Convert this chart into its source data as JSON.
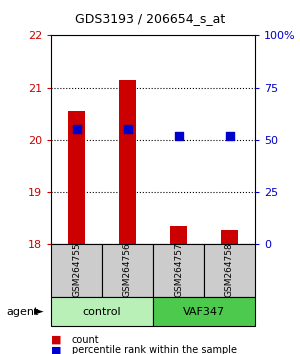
{
  "title": "GDS3193 / 206654_s_at",
  "samples": [
    "GSM264755",
    "GSM264756",
    "GSM264757",
    "GSM264758"
  ],
  "count_values": [
    20.55,
    21.15,
    18.35,
    18.28
  ],
  "percentile_values": [
    55,
    55,
    52,
    52
  ],
  "ylim_left": [
    18,
    22
  ],
  "ylim_right": [
    0,
    100
  ],
  "yticks_left": [
    18,
    19,
    20,
    21,
    22
  ],
  "yticks_right": [
    0,
    25,
    50,
    75,
    100
  ],
  "ytick_labels_right": [
    "0",
    "25",
    "50",
    "75",
    "100%"
  ],
  "left_color": "#cc0000",
  "right_color": "#0000cc",
  "bar_width": 0.35,
  "marker_size": 40,
  "legend_count_label": "count",
  "legend_pct_label": "percentile rank within the sample",
  "agent_label": "agent",
  "sample_box_color": "#cccccc",
  "group_spans": [
    {
      "label": "control",
      "start": 0,
      "end": 1,
      "color": "#b8f0b8"
    },
    {
      "label": "VAF347",
      "start": 2,
      "end": 3,
      "color": "#4dc94d"
    }
  ]
}
